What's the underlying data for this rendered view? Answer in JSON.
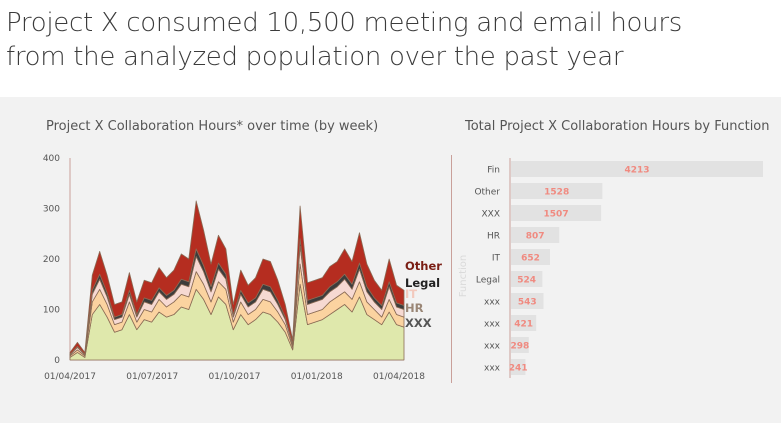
{
  "headline": {
    "line1": "Project X consumed 10,500 meeting and email hours",
    "line2": "from the analyzed population over the past year"
  },
  "chart_data": [
    {
      "type": "area",
      "stacked": true,
      "title": "Project X Collaboration Hours* over time (by week)",
      "x_ticks": [
        "01/04/2017",
        "01/07/2017",
        "01/10/2017",
        "01/01/2018",
        "01/04/2018"
      ],
      "ylim": [
        0,
        400
      ],
      "y_ticks": [
        0,
        100,
        200,
        300,
        400
      ],
      "legend_placement": "right-end",
      "series": [
        {
          "name": "XXX",
          "color": "#dfe8ac",
          "values": [
            5,
            15,
            5,
            90,
            110,
            85,
            55,
            60,
            90,
            60,
            80,
            75,
            95,
            85,
            90,
            105,
            100,
            140,
            120,
            90,
            125,
            110,
            60,
            90,
            70,
            80,
            95,
            90,
            75,
            55,
            20,
            150,
            70,
            75,
            80,
            90,
            100,
            110,
            95,
            125,
            90,
            80,
            70,
            95,
            70,
            65
          ]
        },
        {
          "name": "HR",
          "color": "#fbd3a0",
          "values": [
            3,
            5,
            3,
            25,
            30,
            25,
            15,
            15,
            25,
            15,
            20,
            20,
            25,
            20,
            25,
            25,
            25,
            35,
            30,
            25,
            30,
            30,
            15,
            25,
            20,
            20,
            25,
            25,
            20,
            15,
            5,
            40,
            20,
            20,
            20,
            25,
            25,
            25,
            25,
            30,
            25,
            20,
            15,
            25,
            20,
            20
          ]
        },
        {
          "name": "IT",
          "color": "#f6d9d2",
          "values": [
            2,
            5,
            2,
            15,
            20,
            15,
            10,
            10,
            15,
            10,
            15,
            15,
            15,
            15,
            15,
            20,
            20,
            30,
            25,
            20,
            25,
            20,
            10,
            15,
            15,
            15,
            20,
            20,
            15,
            10,
            5,
            35,
            20,
            20,
            20,
            20,
            20,
            25,
            20,
            25,
            20,
            15,
            15,
            25,
            15,
            15
          ]
        },
        {
          "name": "Legal",
          "color": "#3c3c3c",
          "values": [
            1,
            2,
            1,
            8,
            10,
            8,
            5,
            5,
            8,
            5,
            8,
            8,
            8,
            8,
            8,
            10,
            10,
            15,
            12,
            10,
            12,
            10,
            5,
            8,
            8,
            8,
            10,
            10,
            8,
            5,
            2,
            15,
            8,
            8,
            8,
            10,
            10,
            10,
            10,
            12,
            10,
            8,
            8,
            10,
            8,
            8
          ]
        },
        {
          "name": "Other",
          "color": "#b52d20",
          "values": [
            4,
            8,
            4,
            30,
            45,
            35,
            25,
            25,
            35,
            25,
            35,
            35,
            40,
            35,
            40,
            50,
            45,
            95,
            70,
            45,
            55,
            50,
            20,
            40,
            35,
            40,
            50,
            50,
            40,
            25,
            8,
            65,
            35,
            35,
            35,
            40,
            40,
            50,
            45,
            60,
            45,
            35,
            30,
            45,
            35,
            30
          ]
        }
      ]
    },
    {
      "type": "bar",
      "orientation": "horizontal",
      "title": "Total Project X Collaboration Hours by Function",
      "ylabel": "Function",
      "categories": [
        "Fin",
        "Other",
        "XXX",
        "HR",
        "IT",
        "Legal",
        "xxx",
        "xxx",
        "xxx",
        "xxx"
      ],
      "values": [
        4213,
        1528,
        1507,
        807,
        652,
        524,
        543,
        421,
        298,
        241
      ],
      "bar_color": "#e2e2e2",
      "label_color": "#f08a80"
    }
  ]
}
